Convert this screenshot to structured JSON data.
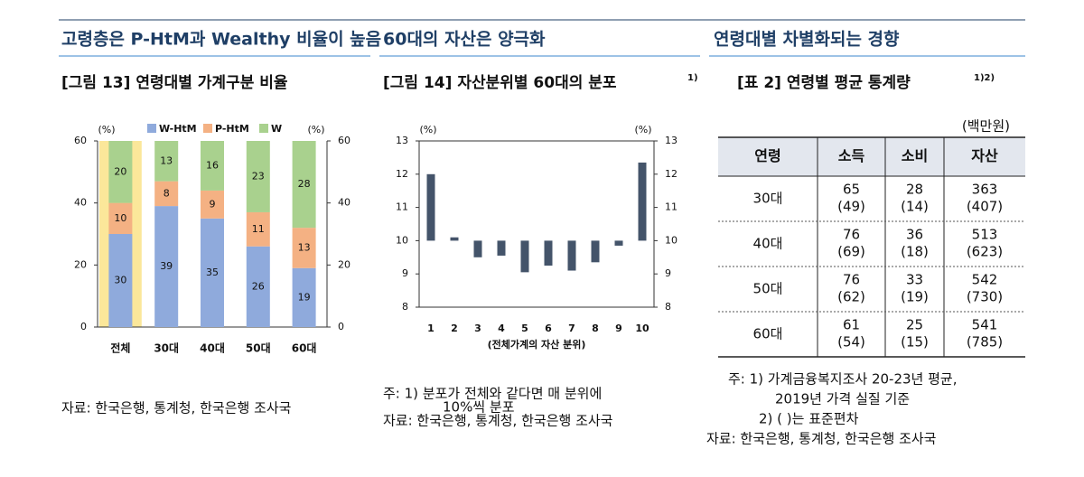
{
  "headers": [
    "고령층은 P-HtM과 Wealthy 비율이 높음",
    "60대의 자산은 양극화",
    "연령대별 차별화되는 경향"
  ],
  "chart_data": [
    {
      "type": "stacked_bar",
      "title": "[그림 13] 연령대별 가계구분 비율",
      "y_unit": "(%)",
      "y2_unit": "(%)",
      "categories": [
        "전체",
        "30대",
        "40대",
        "50대",
        "60대"
      ],
      "series": [
        {
          "name": "W-HtM",
          "color": "#8faadc",
          "values": [
            30,
            39,
            35,
            26,
            19
          ]
        },
        {
          "name": "P-HtM",
          "color": "#f4b183",
          "values": [
            10,
            8,
            9,
            11,
            13
          ]
        },
        {
          "name": "W",
          "color": "#a9d18e",
          "values": [
            20,
            13,
            16,
            23,
            28
          ]
        }
      ],
      "highlight_categories": [
        "전체"
      ],
      "highlight_color": "#fbe79a",
      "ylim": [
        0,
        60
      ],
      "yticks": [
        0,
        20,
        40,
        60
      ],
      "y2lim": [
        0,
        60
      ],
      "y2ticks": [
        0,
        20,
        40,
        60
      ],
      "source": "자료: 한국은행, 통계청, 한국은행 조사국"
    },
    {
      "type": "bar",
      "title": "[그림 14] 자산분위별 60대의 분포",
      "title_note": "1)",
      "y_unit": "(%)",
      "y2_unit": "(%)",
      "x_label": "(전체가계의 자산 분위)",
      "categories": [
        "1",
        "2",
        "3",
        "4",
        "5",
        "6",
        "7",
        "8",
        "9",
        "10"
      ],
      "values": [
        12.0,
        10.1,
        9.5,
        9.55,
        9.05,
        9.25,
        9.1,
        9.35,
        9.85,
        12.35
      ],
      "color": "#44546a",
      "baseline": 10,
      "ylim": [
        8,
        13
      ],
      "yticks": [
        8,
        9,
        10,
        11,
        12,
        13
      ],
      "y2lim": [
        8,
        13
      ],
      "y2ticks": [
        8,
        9,
        10,
        11,
        12,
        13
      ],
      "notes": [
        "주: 1) 분포가 전체와 같다면 매 분위에",
        "10%씩 분포",
        "자료: 한국은행, 통계청, 한국은행 조사국"
      ]
    }
  ],
  "table": {
    "title": "[표 2] 연령별 평균 통계량",
    "title_note": "1)2)",
    "unit": "(백만원)",
    "columns": [
      "연령",
      "소득",
      "소비",
      "자산"
    ],
    "rows": [
      [
        "30대",
        {
          "mean": 65,
          "sd": "(49)"
        },
        {
          "mean": 28,
          "sd": "(14)"
        },
        {
          "mean": 363,
          "sd": "(407)"
        }
      ],
      [
        "40대",
        {
          "mean": 76,
          "sd": "(69)"
        },
        {
          "mean": 36,
          "sd": "(18)"
        },
        {
          "mean": 513,
          "sd": "(623)"
        }
      ],
      [
        "50대",
        {
          "mean": 76,
          "sd": "(62)"
        },
        {
          "mean": 33,
          "sd": "(19)"
        },
        {
          "mean": 542,
          "sd": "(730)"
        }
      ],
      [
        "60대",
        {
          "mean": 61,
          "sd": "(54)"
        },
        {
          "mean": 25,
          "sd": "(15)"
        },
        {
          "mean": 541,
          "sd": "(785)"
        }
      ]
    ],
    "notes": [
      "주: 1) 가계금융복지조사 20-23년 평균,",
      "2019년 가격 실질 기준",
      "2) ( )는 표준편차",
      "자료: 한국은행, 통계청, 한국은행 조사국"
    ]
  }
}
